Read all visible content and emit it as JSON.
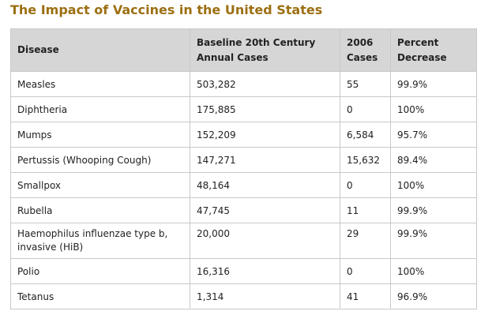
{
  "page": {
    "title": "The Impact of Vaccines in the United States"
  },
  "colors": {
    "title": "#9c6f12",
    "header_background": "#d6d6d6",
    "grid": "#c9c9c9",
    "text": "#222222"
  },
  "table": {
    "headers": [
      "Disease",
      "Baseline 20th Century Annual Cases",
      "2006 Cases",
      "Percent Decrease"
    ],
    "rows": [
      [
        "Measles",
        "503,282",
        "55",
        "99.9%"
      ],
      [
        "Diphtheria",
        "175,885",
        "0",
        "100%"
      ],
      [
        "Mumps",
        "152,209",
        "6,584",
        "95.7%"
      ],
      [
        "Pertussis (Whooping Cough)",
        "147,271",
        "15,632",
        "89.4%"
      ],
      [
        "Smallpox",
        "48,164",
        "0",
        "100%"
      ],
      [
        "Rubella",
        "47,745",
        "11",
        "99.9%"
      ],
      [
        "Haemophilus influenzae type b, invasive (HiB)",
        "20,000",
        "29",
        "99.9%"
      ],
      [
        "Polio",
        "16,316",
        "0",
        "100%"
      ],
      [
        "Tetanus",
        "1,314",
        "41",
        "96.9%"
      ]
    ]
  }
}
